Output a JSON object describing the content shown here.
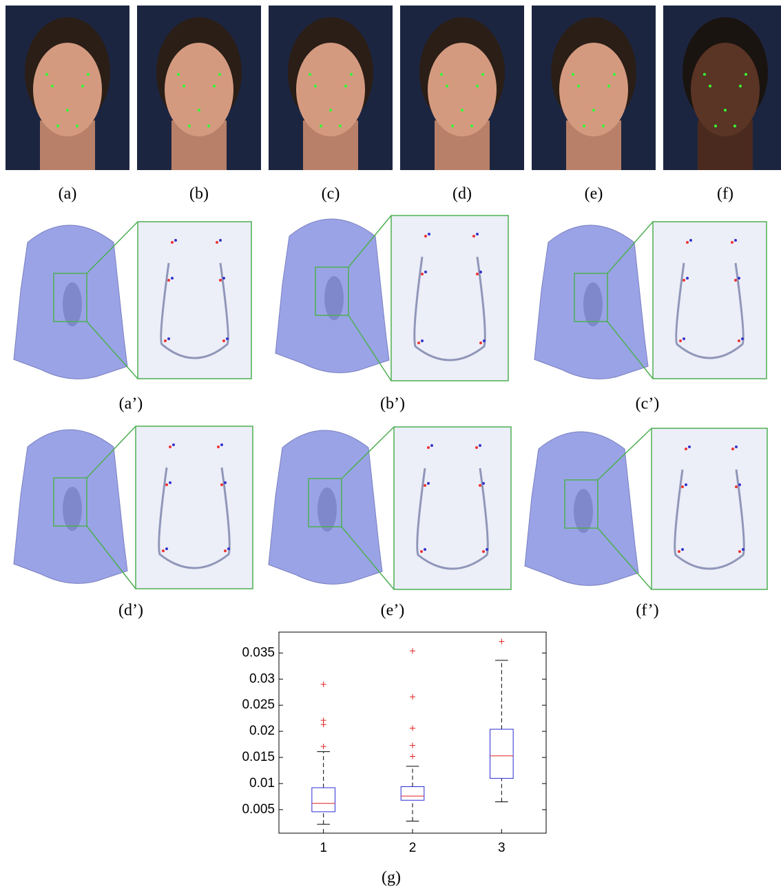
{
  "panels": {
    "photos": [
      "(a)",
      "(b)",
      "(c)",
      "(d)",
      "(e)",
      "(f)"
    ],
    "meshes": [
      "(a’)",
      "(b’)",
      "(c’)",
      "(d’)",
      "(e’)",
      "(f’)"
    ],
    "plot": "(g)"
  },
  "chart_data": {
    "type": "box",
    "categories": [
      "1",
      "2",
      "3"
    ],
    "boxes": [
      {
        "min": 0.0022,
        "q1": 0.0046,
        "median": 0.0062,
        "q3": 0.0092,
        "max": 0.0161,
        "outliers": [
          0.0171,
          0.0213,
          0.0221,
          0.029
        ]
      },
      {
        "min": 0.0028,
        "q1": 0.0068,
        "median": 0.0076,
        "q3": 0.0094,
        "max": 0.0133,
        "outliers": [
          0.0152,
          0.0173,
          0.0206,
          0.0266,
          0.0354
        ]
      },
      {
        "min": 0.0065,
        "q1": 0.011,
        "median": 0.0153,
        "q3": 0.0204,
        "max": 0.0336,
        "outliers": [
          0.0372
        ]
      }
    ],
    "box_color": "#2b2bd6",
    "median_color": "#e02020",
    "outlier_color": "#e02020",
    "ylim": [
      0.0005,
      0.039
    ],
    "yticks": [
      0.005,
      0.01,
      0.015,
      0.02,
      0.025,
      0.03,
      0.035
    ]
  }
}
